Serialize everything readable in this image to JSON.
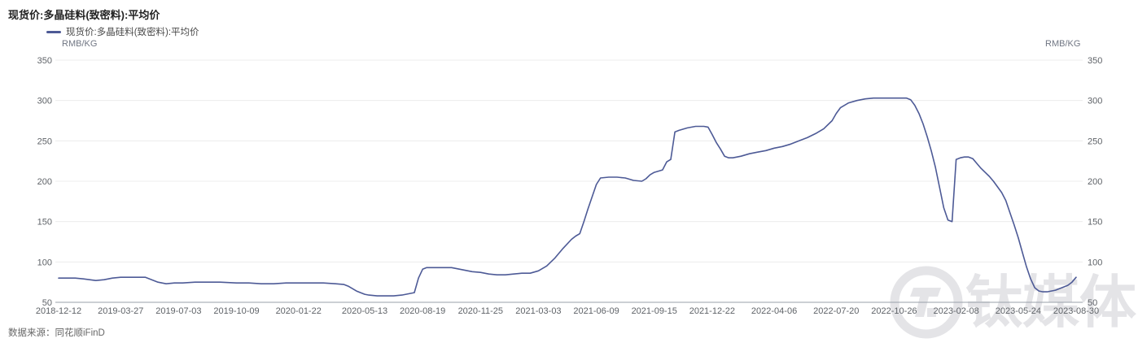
{
  "header": {
    "title": "现货价:多晶硅料(致密料):平均价"
  },
  "legend": {
    "label": "现货价:多晶硅料(致密料):平均价",
    "swatch_color": "#4d5a96"
  },
  "axes": {
    "unit_left": "RMB/KG",
    "unit_right": "RMB/KG"
  },
  "footer": {
    "source": "数据来源：同花顺iFinD"
  },
  "watermark": {
    "text": "钛媒体"
  },
  "colors": {
    "line": "#4d5a96",
    "grid": "#ececec",
    "axis": "#98a0a8",
    "tick_text": "#5f6368",
    "watermark": "#e4e4e7"
  },
  "chart_data": {
    "type": "line",
    "title": "现货价:多晶硅料(致密料):平均价",
    "ylabel": "RMB/KG",
    "ylim": [
      50,
      350
    ],
    "yticks": [
      350,
      300,
      250,
      200,
      150,
      100,
      50
    ],
    "grid": true,
    "legend_position": "top-left",
    "xticks": [
      "2018-12-12",
      "2019-03-27",
      "2019-07-03",
      "2019-10-09",
      "2020-01-22",
      "2020-05-13",
      "2020-08-19",
      "2020-11-25",
      "2021-03-03",
      "2021-06-09",
      "2021-09-15",
      "2021-12-22",
      "2022-04-06",
      "2022-07-20",
      "2022-10-26",
      "2023-02-08",
      "2023-05-24",
      "2023-08-30"
    ],
    "series": [
      {
        "name": "现货价:多晶硅料(致密料):平均价",
        "color": "#4d5a96",
        "points": [
          [
            "2018-12-12",
            80
          ],
          [
            "2018-12-26",
            80
          ],
          [
            "2019-01-09",
            80
          ],
          [
            "2019-01-23",
            79
          ],
          [
            "2019-02-13",
            77
          ],
          [
            "2019-02-27",
            78
          ],
          [
            "2019-03-13",
            80
          ],
          [
            "2019-03-27",
            81
          ],
          [
            "2019-04-10",
            81
          ],
          [
            "2019-04-24",
            81
          ],
          [
            "2019-05-08",
            81
          ],
          [
            "2019-05-15",
            79
          ],
          [
            "2019-05-29",
            75
          ],
          [
            "2019-06-12",
            73
          ],
          [
            "2019-06-26",
            74
          ],
          [
            "2019-07-10",
            74
          ],
          [
            "2019-07-31",
            75
          ],
          [
            "2019-08-21",
            75
          ],
          [
            "2019-09-11",
            75
          ],
          [
            "2019-10-09",
            74
          ],
          [
            "2019-10-30",
            74
          ],
          [
            "2019-11-20",
            73
          ],
          [
            "2019-12-11",
            73
          ],
          [
            "2020-01-01",
            74
          ],
          [
            "2020-01-22",
            74
          ],
          [
            "2020-02-12",
            74
          ],
          [
            "2020-03-04",
            74
          ],
          [
            "2020-03-25",
            73
          ],
          [
            "2020-04-08",
            72
          ],
          [
            "2020-04-15",
            70
          ],
          [
            "2020-04-22",
            67
          ],
          [
            "2020-04-29",
            64
          ],
          [
            "2020-05-06",
            62
          ],
          [
            "2020-05-13",
            60
          ],
          [
            "2020-05-20",
            59
          ],
          [
            "2020-06-03",
            58
          ],
          [
            "2020-06-17",
            58
          ],
          [
            "2020-07-01",
            58
          ],
          [
            "2020-07-15",
            59
          ],
          [
            "2020-07-22",
            60
          ],
          [
            "2020-07-29",
            61
          ],
          [
            "2020-08-05",
            62
          ],
          [
            "2020-08-12",
            80
          ],
          [
            "2020-08-19",
            91
          ],
          [
            "2020-08-26",
            93
          ],
          [
            "2020-09-09",
            93
          ],
          [
            "2020-09-23",
            93
          ],
          [
            "2020-10-07",
            93
          ],
          [
            "2020-10-14",
            92
          ],
          [
            "2020-10-28",
            90
          ],
          [
            "2020-11-11",
            88
          ],
          [
            "2020-11-25",
            87
          ],
          [
            "2020-12-09",
            85
          ],
          [
            "2020-12-23",
            84
          ],
          [
            "2021-01-06",
            84
          ],
          [
            "2021-01-20",
            85
          ],
          [
            "2021-02-03",
            86
          ],
          [
            "2021-02-17",
            86
          ],
          [
            "2021-03-03",
            89
          ],
          [
            "2021-03-17",
            95
          ],
          [
            "2021-03-31",
            105
          ],
          [
            "2021-04-14",
            117
          ],
          [
            "2021-04-28",
            128
          ],
          [
            "2021-05-05",
            132
          ],
          [
            "2021-05-12",
            135
          ],
          [
            "2021-05-19",
            150
          ],
          [
            "2021-05-26",
            166
          ],
          [
            "2021-06-02",
            181
          ],
          [
            "2021-06-09",
            196
          ],
          [
            "2021-06-16",
            204
          ],
          [
            "2021-06-30",
            205
          ],
          [
            "2021-07-14",
            205
          ],
          [
            "2021-07-28",
            204
          ],
          [
            "2021-08-11",
            201
          ],
          [
            "2021-08-25",
            200
          ],
          [
            "2021-09-01",
            203
          ],
          [
            "2021-09-08",
            208
          ],
          [
            "2021-09-15",
            211
          ],
          [
            "2021-09-29",
            214
          ],
          [
            "2021-10-06",
            224
          ],
          [
            "2021-10-13",
            227
          ],
          [
            "2021-10-20",
            261
          ],
          [
            "2021-10-27",
            263
          ],
          [
            "2021-11-10",
            266
          ],
          [
            "2021-11-24",
            268
          ],
          [
            "2021-12-08",
            268
          ],
          [
            "2021-12-15",
            267
          ],
          [
            "2021-12-22",
            258
          ],
          [
            "2021-12-29",
            248
          ],
          [
            "2022-01-05",
            240
          ],
          [
            "2022-01-12",
            231
          ],
          [
            "2022-01-19",
            229
          ],
          [
            "2022-01-26",
            229
          ],
          [
            "2022-02-09",
            231
          ],
          [
            "2022-02-23",
            234
          ],
          [
            "2022-03-09",
            236
          ],
          [
            "2022-03-23",
            238
          ],
          [
            "2022-04-06",
            241
          ],
          [
            "2022-04-20",
            243
          ],
          [
            "2022-05-04",
            246
          ],
          [
            "2022-05-18",
            250
          ],
          [
            "2022-06-01",
            254
          ],
          [
            "2022-06-15",
            259
          ],
          [
            "2022-06-29",
            265
          ],
          [
            "2022-07-13",
            275
          ],
          [
            "2022-07-20",
            284
          ],
          [
            "2022-07-27",
            291
          ],
          [
            "2022-08-10",
            297
          ],
          [
            "2022-08-24",
            300
          ],
          [
            "2022-09-07",
            302
          ],
          [
            "2022-09-21",
            303
          ],
          [
            "2022-10-05",
            303
          ],
          [
            "2022-10-19",
            303
          ],
          [
            "2022-11-02",
            303
          ],
          [
            "2022-11-16",
            303
          ],
          [
            "2022-11-23",
            301
          ],
          [
            "2022-11-30",
            294
          ],
          [
            "2022-12-07",
            284
          ],
          [
            "2022-12-14",
            271
          ],
          [
            "2022-12-21",
            255
          ],
          [
            "2022-12-28",
            237
          ],
          [
            "2023-01-04",
            217
          ],
          [
            "2023-01-11",
            192
          ],
          [
            "2023-01-18",
            167
          ],
          [
            "2023-01-25",
            152
          ],
          [
            "2023-02-01",
            150
          ],
          [
            "2023-02-08",
            227
          ],
          [
            "2023-02-15",
            229
          ],
          [
            "2023-02-22",
            230
          ],
          [
            "2023-03-01",
            230
          ],
          [
            "2023-03-08",
            228
          ],
          [
            "2023-03-15",
            222
          ],
          [
            "2023-03-22",
            216
          ],
          [
            "2023-03-29",
            211
          ],
          [
            "2023-04-05",
            206
          ],
          [
            "2023-04-12",
            200
          ],
          [
            "2023-04-19",
            193
          ],
          [
            "2023-04-26",
            186
          ],
          [
            "2023-05-03",
            176
          ],
          [
            "2023-05-10",
            161
          ],
          [
            "2023-05-17",
            146
          ],
          [
            "2023-05-24",
            130
          ],
          [
            "2023-05-31",
            112
          ],
          [
            "2023-06-07",
            94
          ],
          [
            "2023-06-14",
            79
          ],
          [
            "2023-06-21",
            68
          ],
          [
            "2023-06-28",
            64
          ],
          [
            "2023-07-05",
            63
          ],
          [
            "2023-07-12",
            63
          ],
          [
            "2023-07-19",
            64
          ],
          [
            "2023-07-26",
            65
          ],
          [
            "2023-08-02",
            67
          ],
          [
            "2023-08-09",
            69
          ],
          [
            "2023-08-16",
            71
          ],
          [
            "2023-08-23",
            75
          ],
          [
            "2023-08-30",
            81
          ]
        ]
      }
    ]
  }
}
